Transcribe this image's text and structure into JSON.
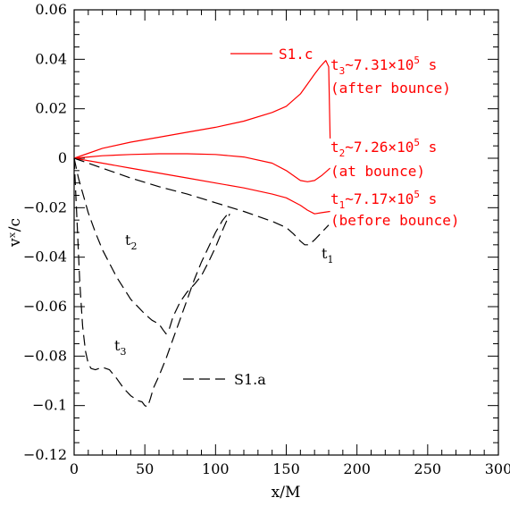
{
  "chart_data": {
    "type": "line",
    "xlabel": "x/M",
    "ylabel": "vˣ/c",
    "xlim": [
      0,
      300
    ],
    "ylim": [
      -0.12,
      0.06
    ],
    "xticks": [
      0,
      50,
      100,
      150,
      200,
      250,
      300
    ],
    "yticks": [
      -0.12,
      -0.1,
      -0.08,
      -0.06,
      -0.04,
      -0.02,
      0,
      0.02,
      0.04,
      0.06
    ],
    "xtick_labels": [
      "0",
      "50",
      "100",
      "150",
      "200",
      "250",
      "300"
    ],
    "ytick_labels": [
      "−0.12",
      "−0.1",
      "−0.08",
      "−0.06",
      "−0.04",
      "−0.02",
      "0",
      "0.02",
      "0.04",
      "0.06"
    ],
    "colors": {
      "s1c": "#ff0000",
      "s1a": "#000000"
    },
    "legend": [
      {
        "label": "S1.c",
        "style": "solid",
        "color": "#ff0000"
      },
      {
        "label": "S1.a",
        "style": "dashed",
        "color": "#000000"
      }
    ],
    "annotations": {
      "t3": {
        "name": "t",
        "sub": "3",
        "value": "~7.31×10",
        "sup": "5",
        "unit": " s",
        "note": "(after bounce)"
      },
      "t2": {
        "name": "t",
        "sub": "2",
        "value": "~7.26×10",
        "sup": "5",
        "unit": " s",
        "note": "(at bounce)"
      },
      "t1": {
        "name": "t",
        "sub": "1",
        "value": "~7.17×10",
        "sup": "5",
        "unit": " s",
        "note": "(before bounce)"
      },
      "curve_t1": {
        "name": "t",
        "sub": "1"
      },
      "curve_t2": {
        "name": "t",
        "sub": "2"
      },
      "curve_t3": {
        "name": "t",
        "sub": "3"
      }
    },
    "series": [
      {
        "name": "S1.c t3",
        "model": "S1.c",
        "time": "t3",
        "style": "solid",
        "x": [
          0,
          10,
          20,
          40,
          60,
          80,
          100,
          120,
          140,
          150,
          160,
          165,
          170,
          174,
          178,
          180,
          181
        ],
        "y": [
          0,
          0.002,
          0.004,
          0.0065,
          0.0085,
          0.0105,
          0.0125,
          0.015,
          0.0185,
          0.021,
          0.026,
          0.03,
          0.034,
          0.037,
          0.0395,
          0.037,
          0.008
        ]
      },
      {
        "name": "S1.c t2",
        "model": "S1.c",
        "time": "t2",
        "style": "solid",
        "x": [
          0,
          10,
          20,
          40,
          60,
          80,
          100,
          120,
          140,
          150,
          160,
          165,
          170,
          175,
          181
        ],
        "y": [
          0,
          0.0005,
          0.001,
          0.0015,
          0.0018,
          0.0018,
          0.0015,
          0.0005,
          -0.002,
          -0.005,
          -0.009,
          -0.0095,
          -0.009,
          -0.007,
          -0.004
        ]
      },
      {
        "name": "S1.c t1",
        "model": "S1.c",
        "time": "t1",
        "style": "solid",
        "x": [
          0,
          20,
          40,
          60,
          80,
          100,
          120,
          140,
          150,
          160,
          165,
          170,
          175,
          181
        ],
        "y": [
          0,
          -0.002,
          -0.004,
          -0.006,
          -0.008,
          -0.01,
          -0.012,
          -0.0145,
          -0.016,
          -0.019,
          -0.021,
          -0.0225,
          -0.022,
          -0.0215
        ]
      },
      {
        "name": "S1.a t1",
        "model": "S1.a",
        "time": "t1",
        "style": "dashed",
        "x": [
          0,
          20,
          40,
          60,
          80,
          100,
          120,
          140,
          150,
          155,
          160,
          163,
          166,
          170,
          175,
          180
        ],
        "y": [
          0,
          -0.004,
          -0.008,
          -0.0115,
          -0.0145,
          -0.018,
          -0.0215,
          -0.0255,
          -0.028,
          -0.0305,
          -0.0335,
          -0.035,
          -0.035,
          -0.033,
          -0.03,
          -0.027
        ]
      },
      {
        "name": "S1.a t2",
        "model": "S1.a",
        "time": "t2",
        "style": "dashed",
        "x": [
          0,
          3,
          6,
          10,
          15,
          20,
          30,
          40,
          50,
          55,
          60,
          63,
          65,
          67,
          70,
          75,
          80,
          85,
          90,
          95,
          100,
          105,
          110
        ],
        "y": [
          0,
          -0.008,
          -0.014,
          -0.022,
          -0.03,
          -0.037,
          -0.048,
          -0.057,
          -0.063,
          -0.0655,
          -0.067,
          -0.0695,
          -0.071,
          -0.0695,
          -0.064,
          -0.058,
          -0.054,
          -0.051,
          -0.0475,
          -0.042,
          -0.036,
          -0.029,
          -0.0225
        ]
      },
      {
        "name": "S1.a t3",
        "model": "S1.a",
        "time": "t3",
        "style": "dashed",
        "x": [
          0,
          2,
          4,
          6,
          8,
          10,
          12,
          15,
          20,
          25,
          30,
          35,
          40,
          45,
          48,
          50,
          52,
          54,
          56,
          60,
          65,
          70,
          75,
          80,
          85,
          90,
          95,
          100,
          105,
          110
        ],
        "y": [
          0,
          -0.025,
          -0.05,
          -0.068,
          -0.078,
          -0.083,
          -0.085,
          -0.0855,
          -0.0845,
          -0.0855,
          -0.089,
          -0.093,
          -0.096,
          -0.098,
          -0.0985,
          -0.1,
          -0.1005,
          -0.097,
          -0.093,
          -0.088,
          -0.081,
          -0.073,
          -0.065,
          -0.057,
          -0.049,
          -0.042,
          -0.036,
          -0.03,
          -0.025,
          -0.0215
        ]
      }
    ]
  }
}
